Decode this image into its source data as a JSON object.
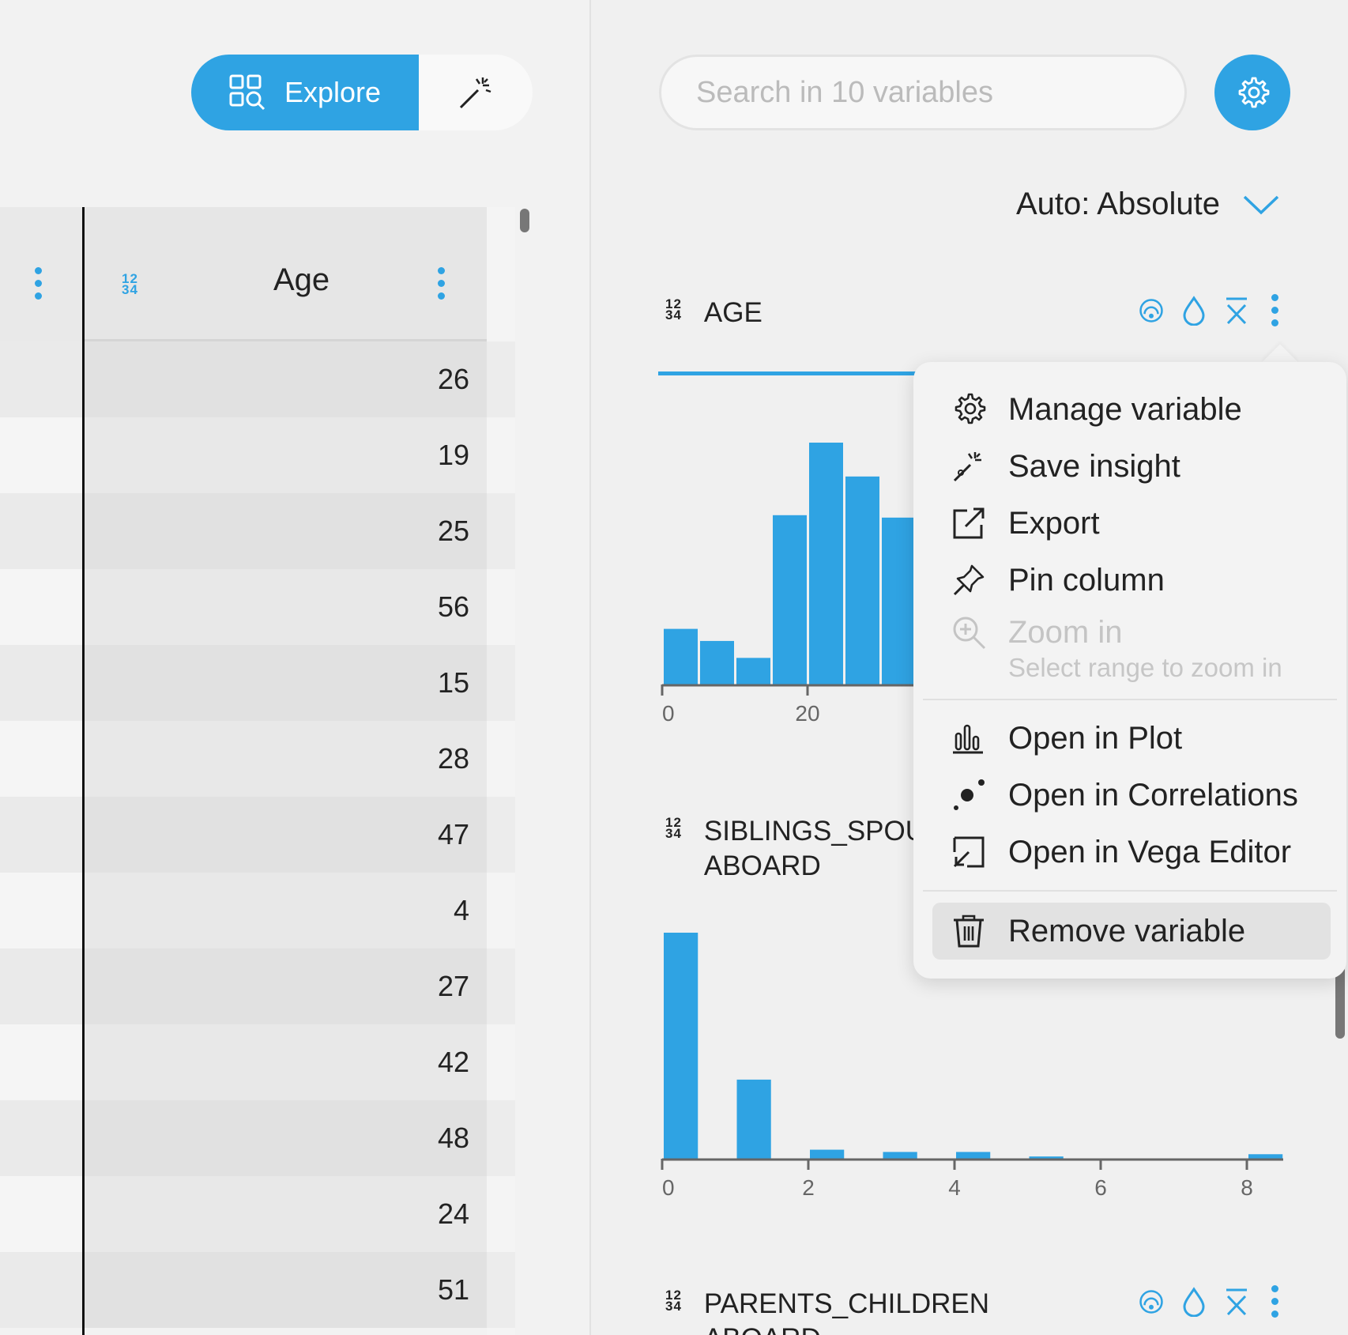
{
  "toolbar": {
    "explore_label": "Explore",
    "accent": "#2fa3e3"
  },
  "table": {
    "column": {
      "type_badge_top": "12",
      "type_badge_bottom": "34",
      "title": "Age"
    },
    "rows": [
      "26",
      "19",
      "25",
      "56",
      "15",
      "28",
      "47",
      "4",
      "27",
      "42",
      "48",
      "24",
      "51"
    ]
  },
  "search": {
    "placeholder": "Search in 10 variables"
  },
  "scale_select": {
    "value": "Auto: Absolute"
  },
  "variables": [
    {
      "type_badge_top": "12",
      "type_badge_bottom": "34",
      "name": "AGE"
    },
    {
      "type_badge_top": "12",
      "type_badge_bottom": "34",
      "name_line1": "SIBLINGS_SPOU",
      "name_line2": "ABOARD"
    },
    {
      "type_badge_top": "12",
      "type_badge_bottom": "34",
      "name_line1": "PARENTS_CHILDREN",
      "name_line2": "ABOARD"
    }
  ],
  "menu": {
    "manage": "Manage variable",
    "save_insight": "Save insight",
    "export": "Export",
    "pin": "Pin column",
    "zoom": "Zoom in",
    "zoom_hint": "Select range to zoom in",
    "open_plot": "Open in Plot",
    "open_correlations": "Open in Correlations",
    "open_vega": "Open in Vega Editor",
    "remove": "Remove variable"
  },
  "chart_data": [
    {
      "type": "bar",
      "title": "",
      "xlabel": "",
      "ylabel": "",
      "x_ticks": [
        "0",
        "20"
      ],
      "bins": [
        {
          "x0": 0,
          "x1": 5,
          "count": 0.23
        },
        {
          "x0": 5,
          "x1": 10,
          "count": 0.18
        },
        {
          "x0": 10,
          "x1": 15,
          "count": 0.11
        },
        {
          "x0": 15,
          "x1": 20,
          "count": 0.7
        },
        {
          "x0": 20,
          "x1": 25,
          "count": 1.0
        },
        {
          "x0": 25,
          "x1": 30,
          "count": 0.86
        },
        {
          "x0": 30,
          "x1": 35,
          "count": 0.69
        }
      ],
      "visible_x_range": [
        0,
        35
      ],
      "note_visible": "partially covered by menu"
    },
    {
      "type": "bar",
      "title": "",
      "xlabel": "",
      "ylabel": "",
      "x_ticks": [
        "0",
        "2",
        "4",
        "6",
        "8"
      ],
      "xlim": [
        0,
        8.5
      ],
      "bins": [
        {
          "x0": 0,
          "x1": 0.5,
          "count": 1.0
        },
        {
          "x0": 1,
          "x1": 1.5,
          "count": 0.35
        },
        {
          "x0": 2,
          "x1": 2.5,
          "count": 0.04
        },
        {
          "x0": 3,
          "x1": 3.5,
          "count": 0.03
        },
        {
          "x0": 4,
          "x1": 4.5,
          "count": 0.03
        },
        {
          "x0": 5,
          "x1": 5.5,
          "count": 0.01
        },
        {
          "x0": 8,
          "x1": 8.5,
          "count": 0.02
        }
      ]
    }
  ]
}
